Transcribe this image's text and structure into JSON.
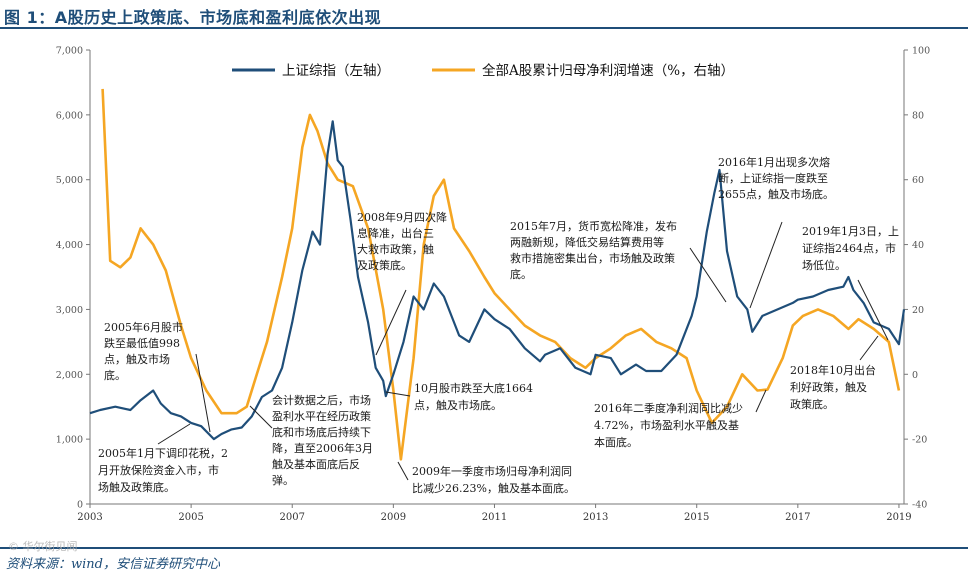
{
  "header": {
    "title": "图 1：A股历史上政策底、市场底和盈利底依次出现"
  },
  "footer": {
    "source": "资料来源：wind，安信证券研究中心",
    "watermark": "© 华尔街见闻"
  },
  "colors": {
    "navy": "#1f4e79",
    "orange": "#f5a623",
    "arrow": "#222222"
  },
  "chart_data": {
    "type": "line",
    "title": "图 1：A股历史上政策底、市场底和盈利底依次出现",
    "x_range": [
      2003.0,
      2019.1
    ],
    "x_ticks": [
      "2003",
      "2005",
      "2007",
      "2009",
      "2011",
      "2013",
      "2015",
      "2017",
      "2019"
    ],
    "y_left": {
      "range": [
        0,
        7000
      ],
      "ticks": [
        "0",
        "1,000",
        "2,000",
        "3,000",
        "4,000",
        "5,000",
        "6,000",
        "7,000"
      ]
    },
    "y_right": {
      "range": [
        -40,
        100
      ],
      "ticks": [
        "-40",
        "-20",
        "0",
        "20",
        "40",
        "60",
        "80",
        "100"
      ]
    },
    "series": [
      {
        "name": "上证综指（左轴）",
        "axis": "left",
        "color": "#1f4e79",
        "x": [
          2003.0,
          2003.2,
          2003.5,
          2003.8,
          2004.0,
          2004.25,
          2004.4,
          2004.6,
          2004.8,
          2005.0,
          2005.2,
          2005.45,
          2005.6,
          2005.8,
          2006.0,
          2006.2,
          2006.4,
          2006.6,
          2006.8,
          2007.0,
          2007.2,
          2007.4,
          2007.55,
          2007.7,
          2007.8,
          2007.9,
          2008.0,
          2008.15,
          2008.3,
          2008.5,
          2008.65,
          2008.8,
          2008.85,
          2009.0,
          2009.2,
          2009.4,
          2009.6,
          2009.8,
          2010.0,
          2010.3,
          2010.5,
          2010.8,
          2011.0,
          2011.3,
          2011.6,
          2011.9,
          2012.0,
          2012.3,
          2012.6,
          2012.9,
          2013.0,
          2013.3,
          2013.5,
          2013.8,
          2014.0,
          2014.3,
          2014.6,
          2014.9,
          2015.0,
          2015.2,
          2015.35,
          2015.45,
          2015.6,
          2015.8,
          2016.0,
          2016.1,
          2016.3,
          2016.6,
          2016.9,
          2017.0,
          2017.3,
          2017.6,
          2017.9,
          2018.0,
          2018.1,
          2018.3,
          2018.5,
          2018.8,
          2019.0,
          2019.1
        ],
        "y": [
          1400,
          1450,
          1500,
          1450,
          1600,
          1750,
          1550,
          1400,
          1350,
          1250,
          1200,
          1000,
          1080,
          1150,
          1180,
          1350,
          1650,
          1750,
          2100,
          2800,
          3600,
          4200,
          4000,
          5400,
          5900,
          5300,
          5200,
          4400,
          3500,
          2800,
          2100,
          1900,
          1664,
          2000,
          2500,
          3200,
          3000,
          3400,
          3200,
          2600,
          2500,
          3000,
          2850,
          2700,
          2400,
          2200,
          2300,
          2400,
          2100,
          2000,
          2300,
          2250,
          2000,
          2150,
          2050,
          2050,
          2300,
          2900,
          3200,
          4200,
          4800,
          5150,
          3900,
          3200,
          3000,
          2655,
          2900,
          3000,
          3100,
          3150,
          3200,
          3300,
          3350,
          3500,
          3300,
          3100,
          2800,
          2700,
          2464,
          3000
        ]
      },
      {
        "name": "全部A股累计归母净利润增速（%，右轴）",
        "axis": "right",
        "color": "#f5a623",
        "x": [
          2003.25,
          2003.4,
          2003.6,
          2003.8,
          2004.0,
          2004.25,
          2004.5,
          2004.8,
          2005.0,
          2005.3,
          2005.6,
          2005.9,
          2006.1,
          2006.3,
          2006.5,
          2006.8,
          2007.0,
          2007.2,
          2007.35,
          2007.5,
          2007.7,
          2007.9,
          2008.2,
          2008.5,
          2008.8,
          2009.0,
          2009.15,
          2009.4,
          2009.6,
          2009.8,
          2010.0,
          2010.2,
          2010.5,
          2010.8,
          2011.0,
          2011.3,
          2011.6,
          2011.9,
          2012.2,
          2012.5,
          2012.8,
          2013.0,
          2013.3,
          2013.6,
          2013.9,
          2014.2,
          2014.5,
          2014.8,
          2015.0,
          2015.3,
          2015.6,
          2015.9,
          2016.2,
          2016.4,
          2016.7,
          2016.9,
          2017.1,
          2017.4,
          2017.7,
          2018.0,
          2018.2,
          2018.5,
          2018.8,
          2019.0
        ],
        "y": [
          88,
          35,
          33,
          36,
          45,
          40,
          32,
          15,
          5,
          -5,
          -12,
          -12,
          -10,
          0,
          10,
          30,
          45,
          70,
          80,
          75,
          65,
          60,
          58,
          45,
          20,
          -5,
          -26.23,
          5,
          40,
          55,
          60,
          45,
          38,
          30,
          25,
          20,
          15,
          12,
          10,
          5,
          2,
          5,
          8,
          12,
          14,
          10,
          8,
          5,
          -5,
          -15,
          -10,
          0,
          -5,
          -4.72,
          5,
          15,
          18,
          20,
          18,
          14,
          17,
          14,
          10,
          -5
        ]
      }
    ],
    "legend": [
      "上证综指（左轴）",
      "全部A股累计归母净利润增速（%，右轴）"
    ],
    "annotations": [
      [
        "2005年6月股市",
        "跌至最低值998",
        "点，触及市场",
        "底。"
      ],
      [
        "2005年1月下调印花税，2",
        "月开放保险资金入市，市",
        "场触及政策底。"
      ],
      [
        "会计数据之后，市场",
        "盈利水平在经历政策",
        "底和市场底后持续下",
        "降，直至2006年3月",
        "触及基本面底后反",
        "弹。"
      ],
      [
        "2008年9月四次降",
        "息降准，出台三",
        "大救市政策，触",
        "及政策底。"
      ],
      [
        "10月股市跌至大底1664",
        "点，触及市场底。"
      ],
      [
        "2009年一季度市场归母净利润同",
        "比减少26.23%，触及基本面底。"
      ],
      [
        "2015年7月，货币宽松降准，发布",
        "两融新规，降低交易结算费用等",
        "救市措施密集出台，市场触及政策",
        "底。"
      ],
      [
        "2016年1月出现多次熔",
        "断，上证综指一度跌至",
        "2655点，触及市场底。"
      ],
      [
        "2016年二季度净利润同比减少",
        "4.72%，市场盈利水平触及基",
        "本面底。"
      ],
      [
        "2019年1月3日，上",
        "证综指2464点，市",
        "场低位。"
      ],
      [
        "2018年10月出台",
        "利好政策，触及",
        "政策底。"
      ]
    ]
  }
}
